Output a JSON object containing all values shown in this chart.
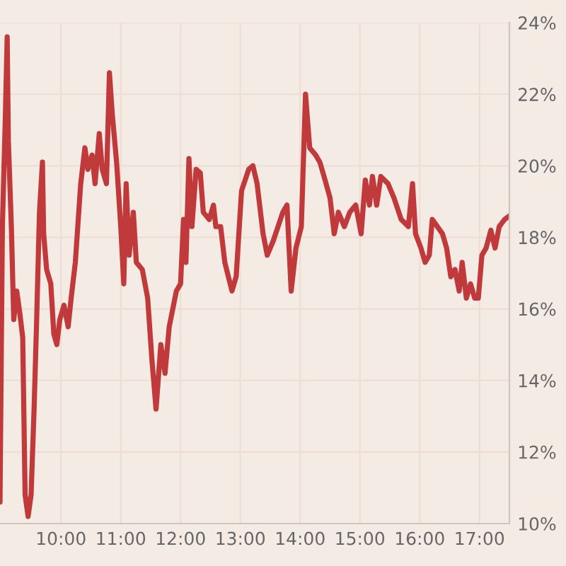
{
  "chart_data": {
    "type": "line",
    "x": [
      8.98,
      9.02,
      9.07,
      9.1,
      9.12,
      9.17,
      9.21,
      9.26,
      9.31,
      9.36,
      9.4,
      9.45,
      9.5,
      9.55,
      9.59,
      9.64,
      9.69,
      9.71,
      9.76,
      9.83,
      9.88,
      9.93,
      9.98,
      10.05,
      10.12,
      10.17,
      10.24,
      10.33,
      10.4,
      10.45,
      10.52,
      10.57,
      10.64,
      10.69,
      10.76,
      10.81,
      10.86,
      10.93,
      11.0,
      11.05,
      11.09,
      11.14,
      11.21,
      11.26,
      11.36,
      11.45,
      11.52,
      11.59,
      11.67,
      11.74,
      11.81,
      11.93,
      12.0,
      12.05,
      12.09,
      12.14,
      12.19,
      12.26,
      12.33,
      12.38,
      12.48,
      12.55,
      12.59,
      12.67,
      12.74,
      12.86,
      12.93,
      13.02,
      13.14,
      13.21,
      13.28,
      13.38,
      13.45,
      13.55,
      13.71,
      13.78,
      13.85,
      13.93,
      14.02,
      14.09,
      14.16,
      14.26,
      14.33,
      14.4,
      14.5,
      14.57,
      14.64,
      14.74,
      14.83,
      14.93,
      15.02,
      15.09,
      15.16,
      15.21,
      15.28,
      15.35,
      15.47,
      15.57,
      15.69,
      15.81,
      15.88,
      15.93,
      16.02,
      16.09,
      16.16,
      16.21,
      16.38,
      16.45,
      16.52,
      16.59,
      16.66,
      16.71,
      16.78,
      16.85,
      16.92,
      16.98,
      17.04,
      17.11,
      17.19,
      17.26,
      17.33,
      17.42,
      17.5
    ],
    "series": [
      {
        "color": "#c0393b",
        "values": [
          10.6,
          18.3,
          21.4,
          23.6,
          20.7,
          18.3,
          15.7,
          16.5,
          15.9,
          15.2,
          10.8,
          10.2,
          10.8,
          13.2,
          15.5,
          18.7,
          20.1,
          18.1,
          17.1,
          16.7,
          15.3,
          15.0,
          15.7,
          16.1,
          15.5,
          16.3,
          17.3,
          19.5,
          20.5,
          19.9,
          20.3,
          19.5,
          20.9,
          19.9,
          19.5,
          22.6,
          21.4,
          20.1,
          18.3,
          16.7,
          19.5,
          17.5,
          18.7,
          17.3,
          17.1,
          16.3,
          14.6,
          13.2,
          15.0,
          14.2,
          15.5,
          16.5,
          16.7,
          18.5,
          17.3,
          20.2,
          18.3,
          19.9,
          19.8,
          18.7,
          18.5,
          18.9,
          18.3,
          18.3,
          17.3,
          16.5,
          16.9,
          19.3,
          19.9,
          20.0,
          19.5,
          18.1,
          17.5,
          17.9,
          18.7,
          18.9,
          16.5,
          17.7,
          18.3,
          22.0,
          20.5,
          20.3,
          20.1,
          19.7,
          19.1,
          18.1,
          18.7,
          18.3,
          18.7,
          18.9,
          18.1,
          19.6,
          18.9,
          19.7,
          18.9,
          19.7,
          19.5,
          19.1,
          18.5,
          18.3,
          19.5,
          18.1,
          17.7,
          17.3,
          17.5,
          18.5,
          18.1,
          17.7,
          16.9,
          17.1,
          16.5,
          17.3,
          16.3,
          16.7,
          16.3,
          16.3,
          17.5,
          17.7,
          18.2,
          17.7,
          18.3,
          18.5,
          18.6
        ]
      }
    ],
    "xlim": [
      8.98,
      17.5
    ],
    "xticks": [
      {
        "value": 10,
        "label": "10:00"
      },
      {
        "value": 11,
        "label": "11:00"
      },
      {
        "value": 12,
        "label": "12:00"
      },
      {
        "value": 13,
        "label": "13:00"
      },
      {
        "value": 14,
        "label": "14:00"
      },
      {
        "value": 15,
        "label": "15:00"
      },
      {
        "value": 16,
        "label": "16:00"
      },
      {
        "value": 17,
        "label": "17:00"
      }
    ],
    "ylim": [
      10,
      24
    ],
    "yticks": [
      {
        "value": 10,
        "label": "10%"
      },
      {
        "value": 12,
        "label": "12%"
      },
      {
        "value": 14,
        "label": "14%"
      },
      {
        "value": 16,
        "label": "16%"
      },
      {
        "value": 18,
        "label": "18%"
      },
      {
        "value": 20,
        "label": "20%"
      },
      {
        "value": 22,
        "label": "22%"
      },
      {
        "value": 24,
        "label": "24%"
      }
    ],
    "grid": true,
    "line_style": "solid"
  }
}
